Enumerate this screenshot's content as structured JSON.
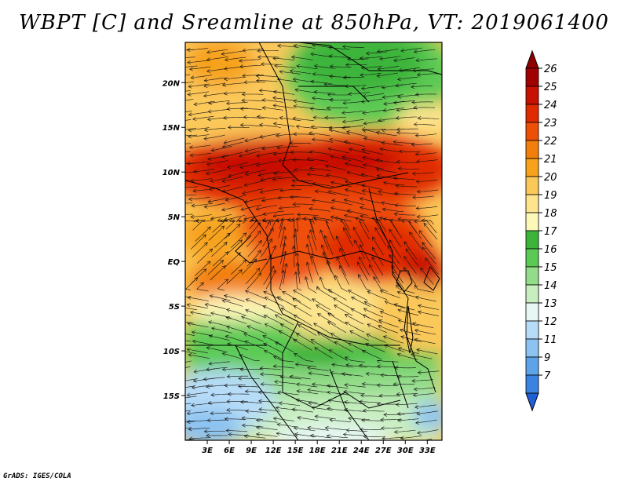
{
  "title": "WBPT [C] and Sreamline at 850hPa, VT: 2019061400",
  "credit": "GrADS: IGES/COLA",
  "map": {
    "lon_range": [
      0,
      35
    ],
    "lat_range": [
      -20,
      24.5
    ],
    "lon_ticks": [
      {
        "value": 3,
        "label": "3E"
      },
      {
        "value": 6,
        "label": "6E"
      },
      {
        "value": 9,
        "label": "9E"
      },
      {
        "value": 12,
        "label": "12E"
      },
      {
        "value": 15,
        "label": "15E"
      },
      {
        "value": 18,
        "label": "18E"
      },
      {
        "value": 21,
        "label": "21E"
      },
      {
        "value": 24,
        "label": "24E"
      },
      {
        "value": 27,
        "label": "27E"
      },
      {
        "value": 30,
        "label": "30E"
      },
      {
        "value": 33,
        "label": "33E"
      }
    ],
    "lat_ticks": [
      {
        "value": 20,
        "label": "20N"
      },
      {
        "value": 15,
        "label": "15N"
      },
      {
        "value": 10,
        "label": "10N"
      },
      {
        "value": 5,
        "label": "5N"
      },
      {
        "value": 0,
        "label": "EQ"
      },
      {
        "value": -5,
        "label": "5S"
      },
      {
        "value": -10,
        "label": "10S"
      },
      {
        "value": -15,
        "label": "15S"
      }
    ]
  },
  "colorbar": {
    "levels": [
      {
        "label": "26",
        "color": "#a10000"
      },
      {
        "label": "25",
        "color": "#c81000"
      },
      {
        "label": "24",
        "color": "#e02a00"
      },
      {
        "label": "23",
        "color": "#ee4f07"
      },
      {
        "label": "22",
        "color": "#f27e0b"
      },
      {
        "label": "21",
        "color": "#f7a21a"
      },
      {
        "label": "20",
        "color": "#fbc85a"
      },
      {
        "label": "19",
        "color": "#fde48d"
      },
      {
        "label": "18",
        "color": "#fdf7b8"
      },
      {
        "label": "17",
        "color": "#3cb43a"
      },
      {
        "label": "16",
        "color": "#5bca55"
      },
      {
        "label": "15",
        "color": "#93dc89"
      },
      {
        "label": "14",
        "color": "#c8eec0"
      },
      {
        "label": "13",
        "color": "#e6f7f4"
      },
      {
        "label": "12",
        "color": "#b7dcf8"
      },
      {
        "label": "11",
        "color": "#8cc3f1"
      },
      {
        "label": "9",
        "color": "#5da3e7"
      },
      {
        "label": "7",
        "color": "#3c82e0"
      }
    ],
    "top_color": "#8f0000",
    "bottom_color": "#1f5fd6"
  }
}
